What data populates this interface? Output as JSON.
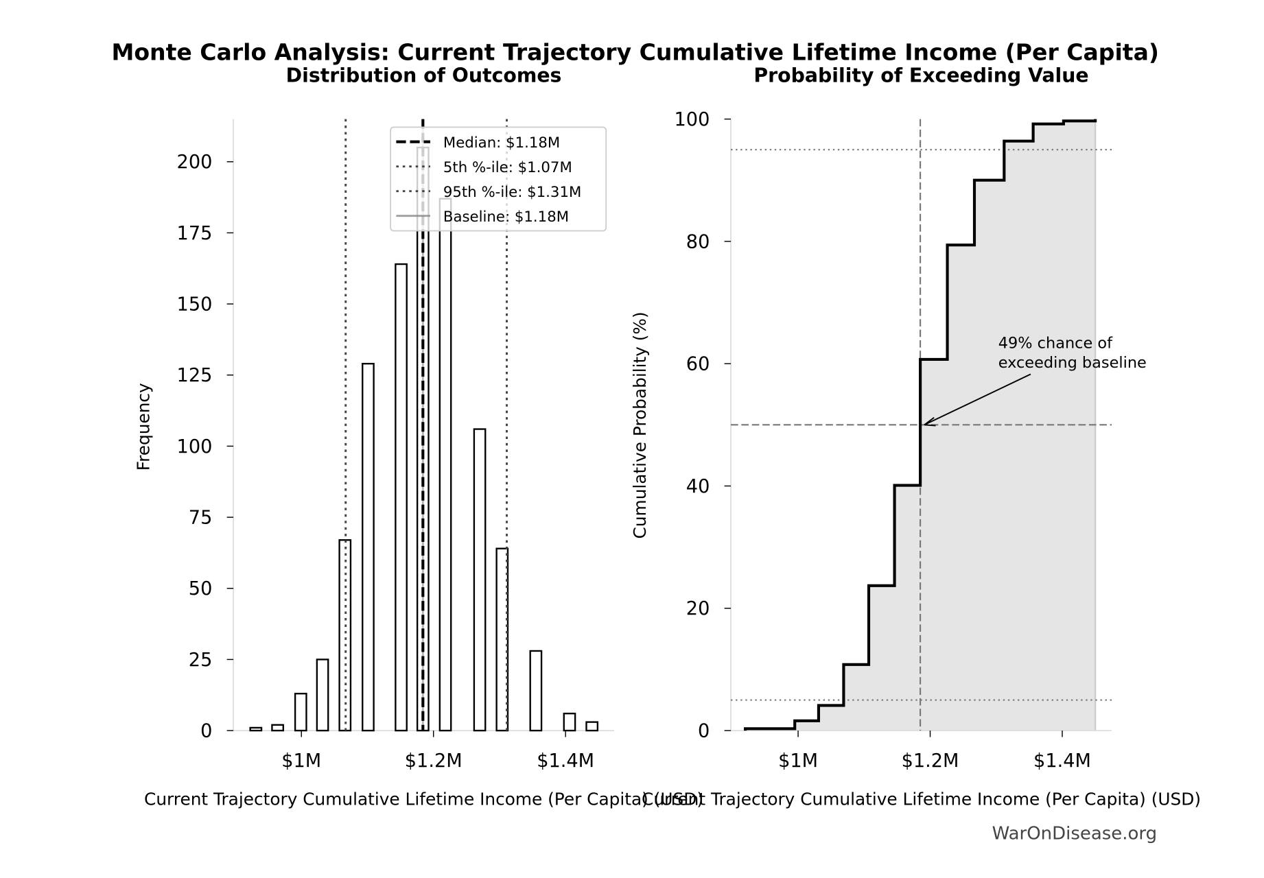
{
  "title": "Monte Carlo Analysis: Current Trajectory Cumulative Lifetime Income (Per Capita)",
  "watermark": "WarOnDisease.org",
  "chart_data": [
    {
      "type": "bar",
      "title": "Distribution of Outcomes",
      "xlabel": "Current Trajectory Cumulative Lifetime Income (Per Capita) (USD)",
      "ylabel": "Frequency",
      "xlim": [
        0.897,
        1.47
      ],
      "ylim": [
        0,
        215
      ],
      "x_unit": "million USD",
      "xticks": [
        {
          "v": 1.0,
          "label": "$1M"
        },
        {
          "v": 1.2,
          "label": "$1.2M"
        },
        {
          "v": 1.4,
          "label": "$1.4M"
        }
      ],
      "yticks": [
        0,
        25,
        50,
        75,
        100,
        125,
        150,
        175,
        200
      ],
      "bin_centers": [
        0.931,
        0.964,
        0.999,
        1.032,
        1.066,
        1.101,
        1.151,
        1.184,
        1.218,
        1.27,
        1.304,
        1.355,
        1.406,
        1.44
      ],
      "values": [
        1,
        2,
        13,
        25,
        67,
        129,
        164,
        205,
        187,
        106,
        64,
        28,
        6,
        3
      ],
      "bar_width": 0.017,
      "reference_lines": [
        {
          "label": "Median: $1.18M",
          "x": 1.184,
          "style": "dashed",
          "color": "#000000"
        },
        {
          "label": "5th %-ile: $1.07M",
          "x": 1.067,
          "style": "dotted",
          "color": "#444444"
        },
        {
          "label": "95th %-ile: $1.31M",
          "x": 1.311,
          "style": "dotted",
          "color": "#444444"
        },
        {
          "label": "Baseline: $1.18M",
          "x": 1.184,
          "style": "solid",
          "color": "#888888"
        }
      ],
      "legend_position": "top-right",
      "grid": false
    },
    {
      "type": "line",
      "title": "Probability of Exceeding Value",
      "xlabel": "Current Trajectory Cumulative Lifetime Income (Per Capita) (USD)",
      "ylabel": "Cumulative Probability (%)",
      "xlim": [
        0.897,
        1.47
      ],
      "ylim": [
        0,
        100
      ],
      "xticks": [
        {
          "v": 1.0,
          "label": "$1M"
        },
        {
          "v": 1.2,
          "label": "$1.2M"
        },
        {
          "v": 1.4,
          "label": "$1.4M"
        }
      ],
      "yticks": [
        0,
        20,
        40,
        60,
        80,
        100
      ],
      "step_x": [
        0.92,
        0.995,
        1.031,
        1.069,
        1.107,
        1.146,
        1.185,
        1.226,
        1.267,
        1.312,
        1.356,
        1.402,
        1.45
      ],
      "step_y": [
        0,
        0.3,
        1.6,
        4.1,
        10.8,
        23.7,
        40.1,
        60.7,
        79.4,
        90.0,
        96.4,
        99.2,
        99.7,
        100
      ],
      "hlines": [
        {
          "y": 95,
          "style": "dotted"
        },
        {
          "y": 5,
          "style": "dotted"
        },
        {
          "y": 50,
          "style": "dashed"
        }
      ],
      "vline": {
        "x": 1.185,
        "style": "dashed"
      },
      "annotation": {
        "lines": [
          "49% chance of",
          "exceeding baseline"
        ],
        "point": [
          1.185,
          50
        ]
      },
      "fill_color": "#e5e5e5",
      "grid": false
    }
  ]
}
